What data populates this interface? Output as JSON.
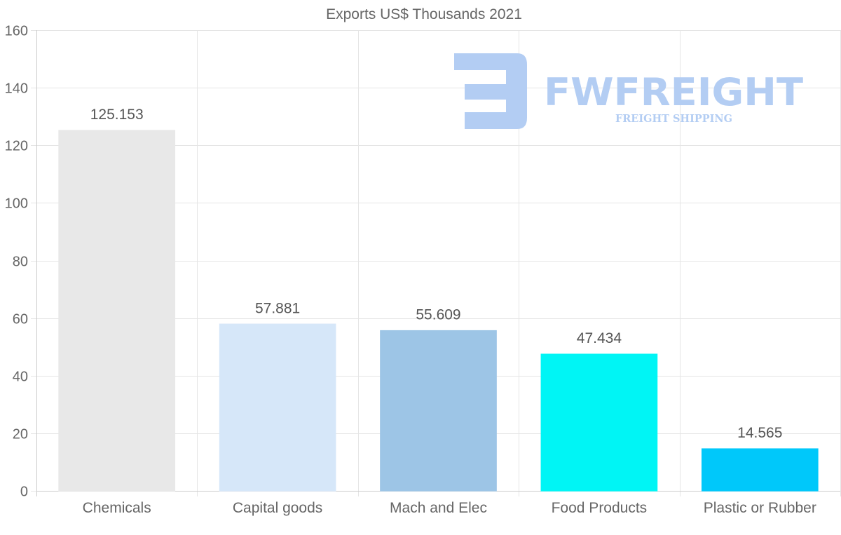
{
  "chart_data": {
    "type": "bar",
    "title": "Exports US$ Thousands 2021",
    "categories": [
      "Chemicals",
      "Capital goods",
      "Mach and Elec",
      "Food Products",
      "Plastic or Rubber"
    ],
    "values": [
      125.153,
      57.881,
      55.609,
      47.434,
      14.565
    ],
    "data_labels": [
      "125.153",
      "57.881",
      "55.609",
      "47.434",
      "14.565"
    ],
    "bar_colors": [
      "#e8e8e8",
      "#d6e7f9",
      "#9dc5e6",
      "#00f5f5",
      "#00c8fa"
    ],
    "ylim": [
      0,
      160
    ],
    "yticks": [
      0,
      20,
      40,
      60,
      80,
      100,
      120,
      140,
      160
    ],
    "xlabel": "",
    "ylabel": "",
    "grid": true,
    "legend": "none"
  },
  "watermark": {
    "brand": "FWFREIGHT",
    "tagline": "FREIGHT SHIPPING",
    "color": "#b3cdf3"
  }
}
